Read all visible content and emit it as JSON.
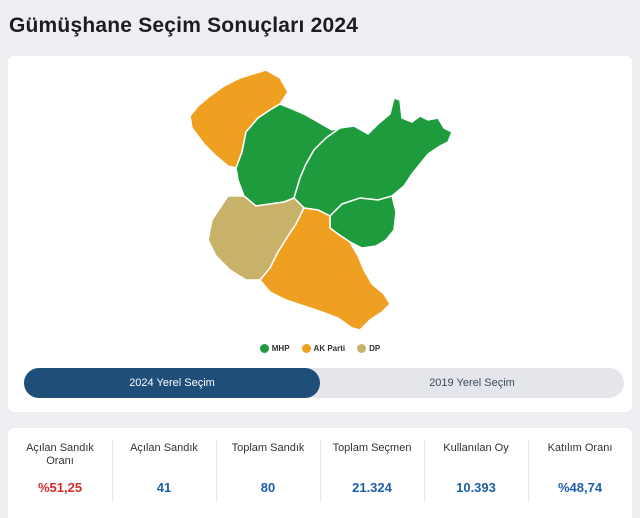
{
  "title": "Gümüşhane Seçim Sonuçları 2024",
  "colors": {
    "mhp": "#1e9b3c",
    "ak_parti": "#f0a020",
    "dp": "#c8b269",
    "active_tab": "#1f4e79",
    "red_value": "#d42a2a",
    "blue_value": "#1f5fa8"
  },
  "legend": [
    {
      "label": "MHP",
      "color": "#1e9b3c"
    },
    {
      "label": "AK Parti",
      "color": "#f0a020"
    },
    {
      "label": "DP",
      "color": "#c8b269"
    }
  ],
  "tabs": {
    "active": "2024 Yerel Seçim",
    "inactive": "2019 Yerel Seçim"
  },
  "stats": [
    {
      "label": "Açılan Sandık Oranı",
      "value": "%51,25"
    },
    {
      "label": "Açılan Sandık",
      "value": "41"
    },
    {
      "label": "Toplam Sandık",
      "value": "80"
    },
    {
      "label": "Toplam Seçmen",
      "value": "21.324"
    },
    {
      "label": "Kullanılan Oy",
      "value": "10.393"
    },
    {
      "label": "Katılım Oranı",
      "value": "%48,74"
    }
  ]
}
